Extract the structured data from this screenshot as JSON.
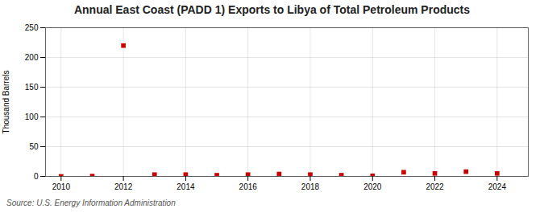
{
  "chart_data": {
    "type": "scatter",
    "title": "Annual East Coast (PADD 1) Exports to Libya of Total Petroleum Products",
    "ylabel": "Thousand Barrels",
    "annotation": "Source: U.S. Energy Information Administration",
    "x": [
      2010,
      2011,
      2012,
      2013,
      2014,
      2015,
      2016,
      2017,
      2018,
      2019,
      2020,
      2021,
      2022,
      2023,
      2024
    ],
    "values": [
      0,
      0.5,
      220,
      3,
      3,
      2,
      3,
      4,
      3,
      2,
      1,
      7,
      5,
      8,
      5
    ],
    "color": "#cc0000",
    "marker": "square",
    "xlim": [
      2009.5,
      2025.0
    ],
    "ylim": [
      0,
      250
    ],
    "xticks": [
      2010,
      2012,
      2014,
      2016,
      2018,
      2020,
      2022,
      2024
    ],
    "yticks": [
      0,
      50,
      100,
      150,
      200,
      250
    ],
    "grid": true
  }
}
